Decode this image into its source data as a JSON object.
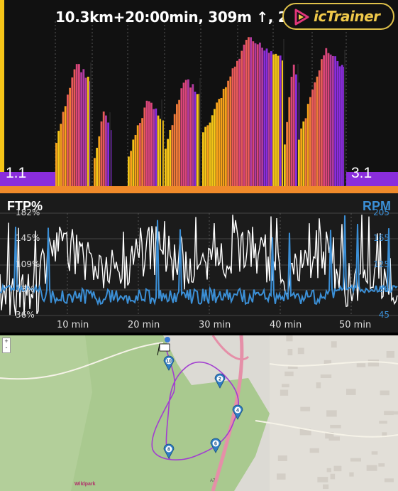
{
  "header": {
    "summary": "10.3km+20:00min, 309m ↑, 2"
  },
  "logo": {
    "name": "icTrainer",
    "icon": "play-triangle-icon",
    "border_color": "#e0c24a",
    "text_color": "#f0c94a"
  },
  "zones": {
    "left_label": "1.1",
    "right_label": "3.1"
  },
  "colors": {
    "zone_purple": "#8a2ddc",
    "zone_yellow": "#f5c518",
    "orange_band": "#f08a2a",
    "rpm_blue": "#3b8fd6",
    "power_white": "#ffffff"
  },
  "power_chart": {
    "left_title": "FTP%",
    "right_title": "RPM",
    "left_ticks": [
      "182%",
      "145%",
      "109%",
      "73%",
      "36%"
    ],
    "right_ticks": [
      "205",
      "165",
      "125",
      "85",
      "45"
    ],
    "x_ticks": [
      "10 min",
      "20 min",
      "30 min",
      "40 min",
      "50 min"
    ]
  },
  "map": {
    "zoom_in": "+",
    "zoom_out": "-",
    "markers": [
      "10",
      "2",
      "4",
      "6",
      "8"
    ],
    "labels": [
      "Wildpark",
      "A7"
    ]
  }
}
